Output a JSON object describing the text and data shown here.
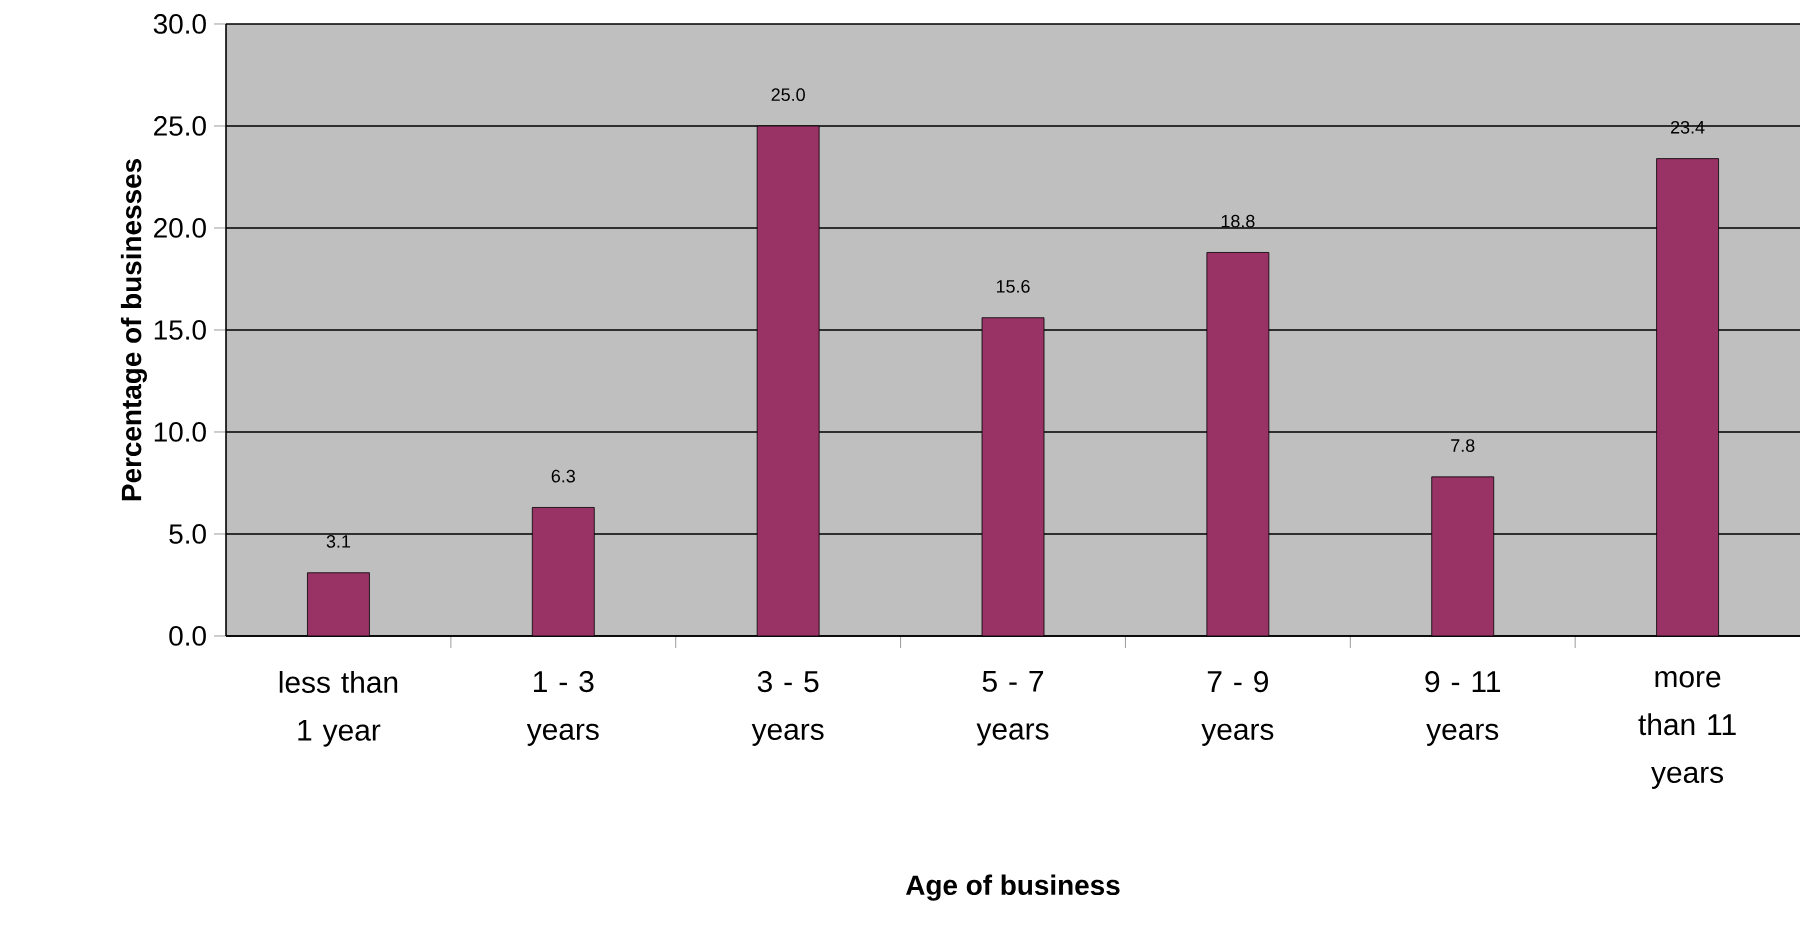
{
  "chart_data": {
    "type": "bar",
    "xlabel": "Age of business",
    "ylabel": "Percentage of businesses",
    "categories": [
      "less than 1 year",
      "1 - 3 years",
      "3 - 5 years",
      "5 - 7 years",
      "7 - 9 years",
      "9 - 11 years",
      "more than 11 years"
    ],
    "values": [
      3.1,
      6.3,
      25.0,
      15.6,
      18.8,
      7.8,
      23.4
    ],
    "value_labels": [
      "3.1",
      "6.3",
      "25.0",
      "15.6",
      "18.8",
      "7.8",
      "23.4"
    ],
    "color": "#993366",
    "ylim": [
      0,
      30
    ],
    "yticks": [
      {
        "value": 0,
        "label": "0.0"
      },
      {
        "value": 5,
        "label": "5.0"
      },
      {
        "value": 10,
        "label": "10.0"
      },
      {
        "value": 15,
        "label": "15.0"
      },
      {
        "value": 20,
        "label": "20.0"
      },
      {
        "value": 25,
        "label": "25.0"
      },
      {
        "value": 30,
        "label": "30.0"
      }
    ],
    "grid": "y"
  }
}
